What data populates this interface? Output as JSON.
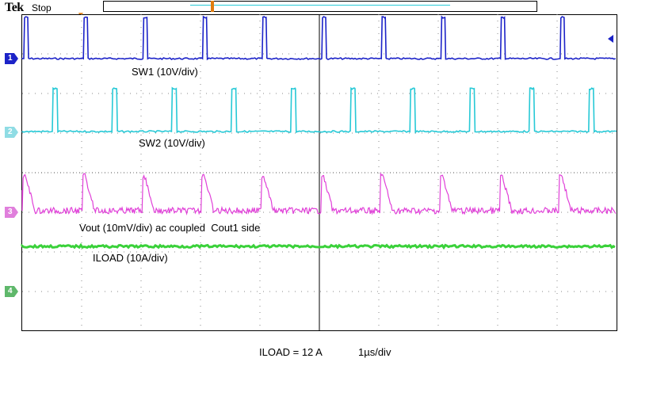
{
  "header": {
    "brand": "Tek",
    "status": "Stop"
  },
  "trigger": {
    "marker": "T"
  },
  "channels": [
    {
      "number": "1",
      "color": "#1c23c8",
      "label": "SW1 (10V/div)"
    },
    {
      "number": "2",
      "color": "#27c9d6",
      "label": "SW2 (10V/div)"
    },
    {
      "number": "3",
      "color": "#e040d8",
      "label": "Vout (10mV/div) ac coupled  Cout1 side"
    },
    {
      "number": "4",
      "color": "#3ad13a",
      "label": "ILOAD (10A/div)"
    }
  ],
  "footer": {
    "load": "ILOAD = 12 A",
    "timebase": "1µs/div"
  }
}
